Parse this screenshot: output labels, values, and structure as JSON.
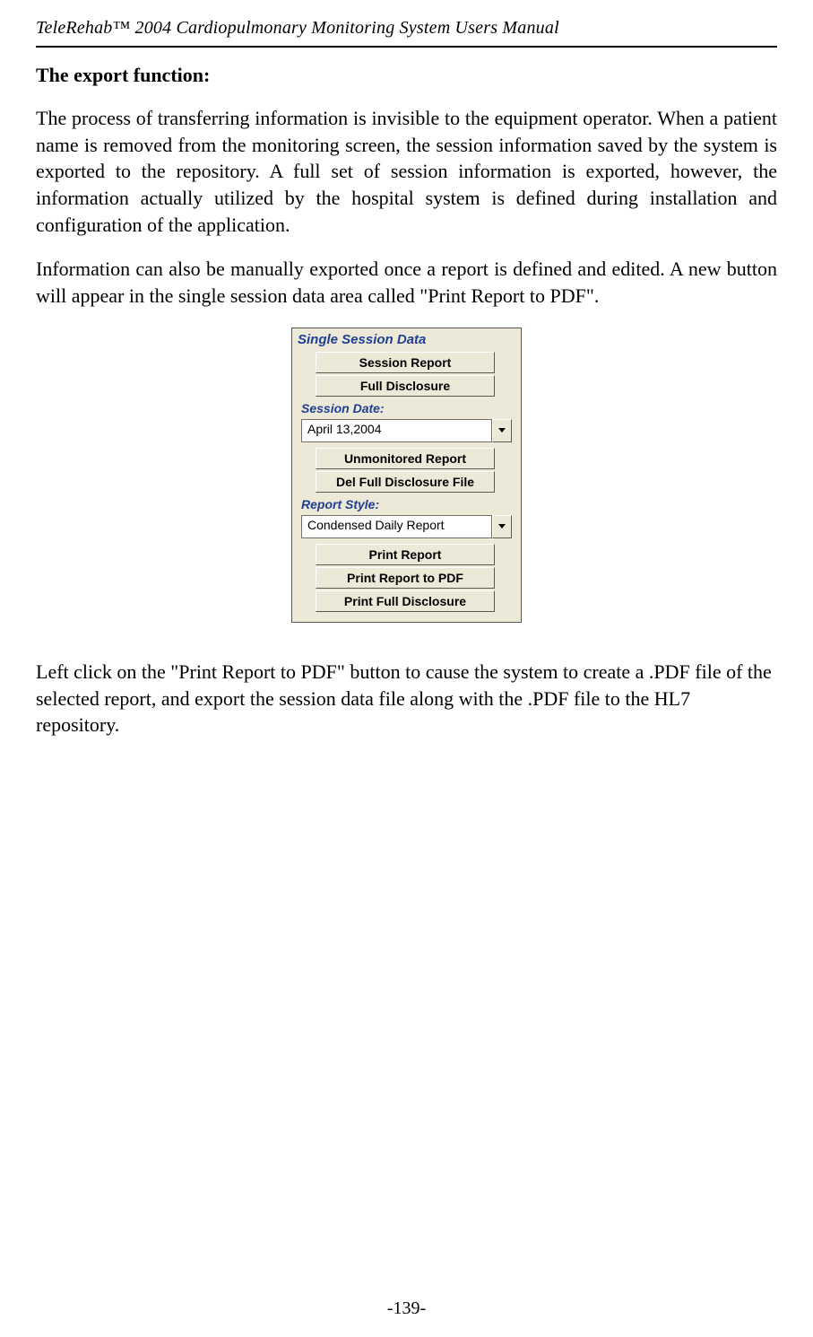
{
  "header": {
    "title": "TeleRehab™ 2004 Cardiopulmonary Monitoring System Users Manual"
  },
  "content": {
    "heading": "The export function:",
    "para1": "The process of transferring information is invisible to the equipment operator. When a patient name is removed from the monitoring screen, the session information saved by the system is exported to the repository. A full set of session information is exported, however, the information actually utilized by the hospital system is defined during installation and configuration of the application.",
    "para2": "Information can also be manually exported once a report is defined and edited. A new button will appear in the single session data area called \"Print Report to PDF\".",
    "para3": "Left click on the \"Print Report to PDF\" button to cause the system to create a .PDF file of the selected report, and export the session data file along with the .PDF file to the HL7 repository."
  },
  "panel": {
    "title": "Single Session Data",
    "buttons_top": {
      "session_report": "Session Report",
      "full_disclosure": "Full Disclosure"
    },
    "session_date_label": "Session Date:",
    "session_date_value": "April 13,2004",
    "buttons_mid": {
      "unmonitored_report": "Unmonitored Report",
      "del_full_disclosure": "Del Full Disclosure File"
    },
    "report_style_label": "Report Style:",
    "report_style_value": "Condensed Daily Report",
    "buttons_bottom": {
      "print_report": "Print Report",
      "print_report_pdf": "Print Report to PDF",
      "print_full_disclosure": "Print Full Disclosure"
    }
  },
  "footer": {
    "page_number": "-139-"
  },
  "styling": {
    "page_bg": "#ffffff",
    "text_color": "#000000",
    "panel_bg": "#ece9d8",
    "panel_border": "#595650",
    "panel_label_color": "#1f3f94",
    "dropdown_bg": "#ffffff",
    "dropdown_border": "#716f64",
    "btn_light_edge": "#ffffff",
    "btn_dark_edge": "#5a5a50",
    "body_font": "Times New Roman",
    "ui_font": "Tahoma"
  }
}
